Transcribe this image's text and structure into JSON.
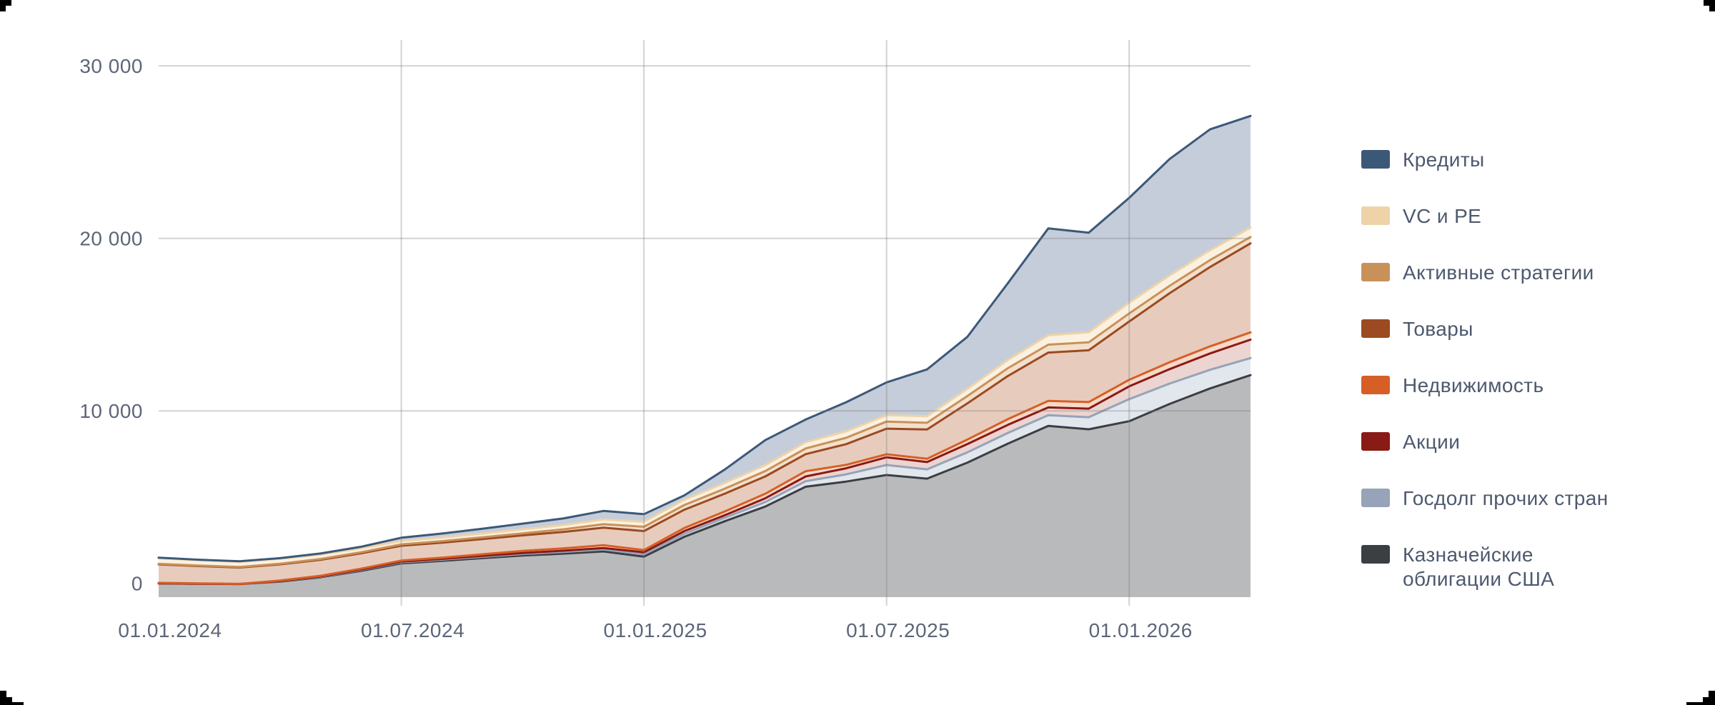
{
  "page": {
    "background": "#ffffff",
    "grid_color": "#d4d4d4",
    "axis_text_color": "#5d6678",
    "legend_text_color": "#4d596e"
  },
  "chart_data": {
    "type": "area",
    "stacked": true,
    "title": "",
    "xlabel": "",
    "ylabel": "",
    "grid": true,
    "legend_position": "right",
    "ylim": [
      -800,
      31500
    ],
    "y_ticks": [
      {
        "value": 0,
        "label": "0"
      },
      {
        "value": 10000,
        "label": "10 000"
      },
      {
        "value": 20000,
        "label": "20 000"
      },
      {
        "value": 30000,
        "label": "30 000"
      }
    ],
    "x_tick_labels": [
      {
        "month_index": 0,
        "label": "01.01.2024"
      },
      {
        "month_index": 6,
        "label": "01.07.2024"
      },
      {
        "month_index": 12,
        "label": "01.01.2025"
      },
      {
        "month_index": 18,
        "label": "01.07.2025"
      },
      {
        "month_index": 24,
        "label": "01.01.2026"
      }
    ],
    "gridline_months": [
      6,
      12,
      18,
      24
    ],
    "categories": [
      "01.01.2024",
      "01.02.2024",
      "01.03.2024",
      "01.04.2024",
      "01.05.2024",
      "01.06.2024",
      "01.07.2024",
      "01.08.2024",
      "01.09.2024",
      "01.10.2024",
      "01.11.2024",
      "01.12.2024",
      "01.01.2025",
      "01.02.2025",
      "01.03.2025",
      "01.04.2025",
      "01.05.2025",
      "01.06.2025",
      "01.07.2025",
      "01.08.2025",
      "01.09.2025",
      "01.10.2025",
      "01.11.2025",
      "01.12.2025",
      "01.01.2026",
      "01.02.2026",
      "01.03.2026",
      "01.04.2026"
    ],
    "series": [
      {
        "name": "Казначейские облигации США",
        "stroke": "#3b3e43",
        "fill": "#b9babc",
        "values": [
          0,
          -20,
          -40,
          100,
          350,
          720,
          1160,
          1300,
          1460,
          1610,
          1720,
          1850,
          1550,
          2700,
          3600,
          4450,
          5600,
          5900,
          6280,
          6070,
          7000,
          8100,
          9130,
          8930,
          9400,
          10400,
          11300,
          12070
        ]
      },
      {
        "name": "Госдолг прочих стран",
        "stroke": "#96a3b8",
        "fill": "#e2e6ed",
        "values": [
          0,
          0,
          0,
          20,
          30,
          50,
          60,
          70,
          80,
          90,
          100,
          110,
          130,
          170,
          200,
          260,
          320,
          420,
          580,
          540,
          600,
          620,
          620,
          700,
          1280,
          1180,
          1080,
          990
        ]
      },
      {
        "name": "Акции",
        "stroke": "#8a1a15",
        "fill": "#ecd4d0",
        "values": [
          0,
          0,
          0,
          10,
          20,
          30,
          40,
          45,
          55,
          60,
          70,
          90,
          120,
          160,
          150,
          220,
          280,
          350,
          450,
          420,
          480,
          470,
          450,
          500,
          740,
          840,
          950,
          1070
        ]
      },
      {
        "name": "Недвижимость",
        "stroke": "#d65f26",
        "fill": "#f6d9c8",
        "values": [
          30,
          20,
          10,
          30,
          40,
          50,
          60,
          70,
          90,
          120,
          140,
          160,
          130,
          180,
          220,
          260,
          300,
          200,
          170,
          190,
          260,
          330,
          380,
          380,
          380,
          400,
          410,
          420
        ]
      },
      {
        "name": "Товары",
        "stroke": "#9c4a21",
        "fill": "#e7ccbd",
        "values": [
          1070,
          1000,
          950,
          940,
          920,
          890,
          860,
          870,
          880,
          900,
          950,
          1020,
          1100,
          1060,
          1030,
          1010,
          990,
          1200,
          1490,
          1700,
          2100,
          2500,
          2800,
          3000,
          3380,
          4000,
          4600,
          5160
        ]
      },
      {
        "name": "Активные стратегии",
        "stroke": "#c9915a",
        "fill": "#f2e0cd",
        "values": [
          30,
          30,
          30,
          40,
          50,
          60,
          80,
          90,
          100,
          120,
          150,
          200,
          250,
          270,
          290,
          310,
          330,
          370,
          410,
          390,
          420,
          450,
          460,
          460,
          470,
          430,
          400,
          370
        ]
      },
      {
        "name": "VC и PE",
        "stroke": "#eed3a9",
        "fill": "#faf1e1",
        "values": [
          330,
          310,
          300,
          280,
          260,
          230,
          200,
          210,
          220,
          230,
          250,
          270,
          290,
          310,
          330,
          340,
          360,
          370,
          370,
          380,
          420,
          480,
          540,
          580,
          620,
          600,
          570,
          540
        ]
      },
      {
        "name": "Кредиты",
        "stroke": "#3c5878",
        "fill": "#c5cdda",
        "values": [
          30,
          30,
          30,
          40,
          60,
          90,
          185,
          230,
          280,
          330,
          380,
          500,
          440,
          250,
          780,
          1450,
          1320,
          1690,
          1900,
          2710,
          3020,
          4450,
          6200,
          5780,
          6080,
          6750,
          7010,
          6480
        ]
      }
    ]
  },
  "legend": {
    "items": [
      {
        "label": "Кредиты",
        "color": "#3c5878"
      },
      {
        "label": "VC и PE",
        "color": "#eed3a9"
      },
      {
        "label": "Активные стратегии",
        "color": "#c9915a"
      },
      {
        "label": "Товары",
        "color": "#9c4a21"
      },
      {
        "label": "Недвижимость",
        "color": "#d65f26"
      },
      {
        "label": "Акции",
        "color": "#8a1a15"
      },
      {
        "label": "Госдолг прочих стран",
        "color": "#96a3b8"
      },
      {
        "label": "Казначейские облигации США",
        "color": "#3b3e43"
      }
    ]
  }
}
